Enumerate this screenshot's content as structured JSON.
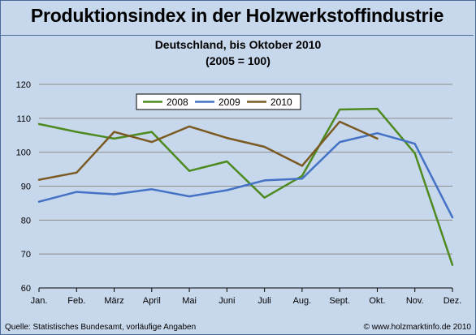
{
  "header": {
    "title": "Produktionsindex in der Holzwerkstoffindustrie"
  },
  "footer": {
    "source": "Quelle: Statistisches Bundesamt, vorläufige Angaben",
    "copyright": "© www.holzmarktinfo.de 2010"
  },
  "colors": {
    "background": "#c7d7ec",
    "frame": "#4a6a98",
    "gridline": "#8c8c8c"
  },
  "chart_data": {
    "type": "line",
    "title": "Deutschland, bis Oktober 2010",
    "subtitle": "(2005 = 100)",
    "xlabel": "",
    "ylabel": "",
    "categories": [
      "Jan.",
      "Feb.",
      "März",
      "April",
      "Mai",
      "Juni",
      "Juli",
      "Aug.",
      "Sept.",
      "Okt.",
      "Nov.",
      "Dez."
    ],
    "ylim": [
      60,
      120
    ],
    "yticks": [
      60,
      70,
      80,
      90,
      100,
      110,
      120
    ],
    "grid": true,
    "legend_position": "top-center",
    "series": [
      {
        "name": "2008",
        "color": "#4d8a1f",
        "values": [
          108.3,
          106.0,
          104.0,
          106.0,
          94.5,
          97.3,
          86.6,
          93.0,
          112.6,
          112.8,
          99.7,
          66.8
        ]
      },
      {
        "name": "2009",
        "color": "#4472c4",
        "values": [
          85.4,
          88.3,
          87.6,
          89.1,
          87.0,
          88.8,
          91.7,
          92.2,
          103.0,
          105.6,
          102.5,
          80.8
        ]
      },
      {
        "name": "2010",
        "color": "#7b5a22",
        "values": [
          91.9,
          94.0,
          106.0,
          103.0,
          107.6,
          104.2,
          101.6,
          96.0,
          109.0,
          104.0,
          null,
          null
        ]
      }
    ]
  }
}
